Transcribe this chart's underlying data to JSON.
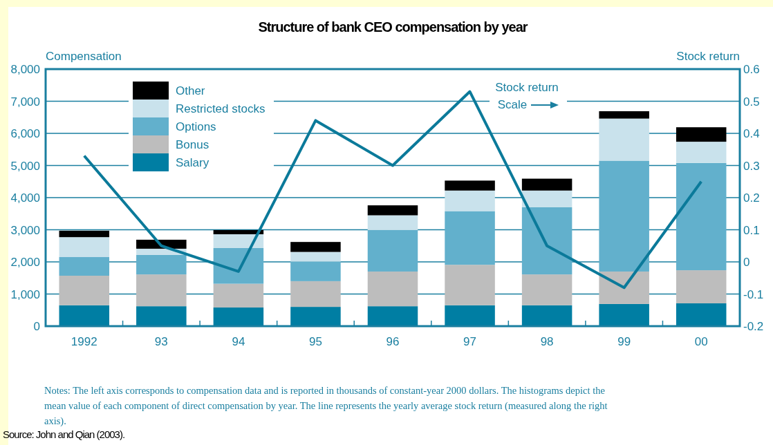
{
  "chart_data": {
    "type": "bar",
    "title": "Structure of bank CEO compensation by year",
    "ylabel": "Compensation",
    "y2label": "Stock return",
    "categories": [
      "1992",
      "93",
      "94",
      "95",
      "96",
      "97",
      "98",
      "99",
      "00"
    ],
    "stacked": true,
    "series": [
      {
        "name": "Salary",
        "color": "#007ea3",
        "values": [
          650,
          620,
          580,
          600,
          620,
          650,
          650,
          690,
          710
        ]
      },
      {
        "name": "Bonus",
        "color": "#bdbdbd",
        "values": [
          920,
          990,
          740,
          800,
          1080,
          1260,
          960,
          1010,
          1030
        ]
      },
      {
        "name": "Options",
        "color": "#62b0cc",
        "values": [
          580,
          610,
          1110,
          610,
          1290,
          1670,
          2090,
          3450,
          3340
        ]
      },
      {
        "name": "Restricted stocks",
        "color": "#c9e2ec",
        "values": [
          620,
          190,
          430,
          300,
          460,
          640,
          520,
          1310,
          660
        ]
      },
      {
        "name": "Other",
        "color": "#000000",
        "values": [
          200,
          280,
          130,
          310,
          310,
          310,
          370,
          230,
          450
        ]
      },
      {
        "type": "line",
        "axis": "y2",
        "color": "#0b7a9a",
        "values": [
          0.33,
          0.05,
          -0.03,
          0.44,
          0.3,
          0.53,
          0.05,
          -0.08,
          0.25
        ]
      }
    ],
    "ylim": [
      0,
      8000
    ],
    "yticks": [
      0,
      {
        "value": 1000,
        "label": "1,000"
      },
      {
        "value": 2000,
        "label": "2,000"
      },
      {
        "value": 3000,
        "label": "3,000"
      },
      {
        "value": 4000,
        "label": "4,000"
      },
      {
        "value": 5000,
        "label": "5,000"
      },
      {
        "value": 6000,
        "label": "6,000"
      },
      {
        "value": 7000,
        "label": "7,000"
      },
      {
        "value": 8000,
        "label": "8,000"
      }
    ],
    "y2lim": [
      -0.2,
      0.6
    ],
    "y2ticks": [
      -0.2,
      -0.1,
      0,
      0.1,
      0.2,
      0.3,
      0.4,
      0.5,
      0.6
    ],
    "grid": "y",
    "legend": "top left",
    "annotations": [
      "Stock return\nScale",
      "Notes: The left axis corresponds to compensation data and is reported in thousands of constant-year 2000 dollars. The histograms depict the mean value of each component of direct compensation by year. The line represents the yearly average stock return (measured along the right axis).",
      "Source: John and Qian (2003)."
    ]
  }
}
